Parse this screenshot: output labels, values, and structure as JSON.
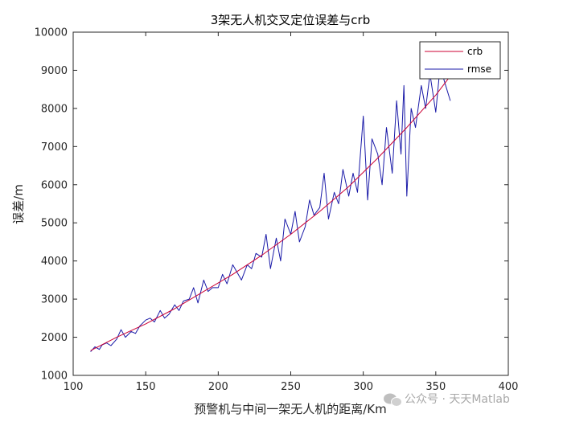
{
  "chart_data": {
    "type": "line",
    "title": "3架无人机交叉定位误差与crb",
    "xlabel": "预警机与中间一架无人机的距离/Km",
    "ylabel": "误差/m",
    "xlim": [
      100,
      400
    ],
    "ylim": [
      1000,
      10000
    ],
    "x_ticks": [
      100,
      150,
      200,
      250,
      300,
      350,
      400
    ],
    "y_ticks": [
      1000,
      2000,
      3000,
      4000,
      5000,
      6000,
      7000,
      8000,
      9000,
      10000
    ],
    "grid": false,
    "legend_position": "top-right",
    "x_range": [
      112,
      360
    ],
    "series": [
      {
        "name": "crb",
        "color": "#cc0033",
        "x": [
          112,
          130,
          150,
          170,
          190,
          210,
          230,
          250,
          270,
          290,
          310,
          330,
          350,
          360
        ],
        "values": [
          1650,
          2000,
          2350,
          2750,
          3200,
          3650,
          4150,
          4700,
          5300,
          5950,
          6700,
          7500,
          8350,
          8850
        ]
      },
      {
        "name": "rmse",
        "color": "#1a1aa8",
        "x": [
          112,
          115,
          118,
          120,
          123,
          126,
          130,
          133,
          136,
          140,
          143,
          146,
          150,
          153,
          156,
          160,
          163,
          166,
          170,
          173,
          176,
          180,
          183,
          186,
          190,
          193,
          196,
          200,
          203,
          206,
          210,
          213,
          216,
          220,
          223,
          226,
          230,
          233,
          236,
          240,
          243,
          246,
          250,
          253,
          256,
          260,
          263,
          266,
          270,
          273,
          276,
          280,
          283,
          286,
          290,
          293,
          296,
          300,
          303,
          306,
          310,
          313,
          316,
          320,
          323,
          326,
          328,
          330,
          333,
          336,
          340,
          343,
          346,
          350,
          353,
          356,
          360
        ],
        "values": [
          1620,
          1750,
          1680,
          1800,
          1850,
          1780,
          1950,
          2200,
          2000,
          2150,
          2100,
          2300,
          2450,
          2500,
          2400,
          2700,
          2500,
          2600,
          2850,
          2700,
          2950,
          3000,
          3300,
          2900,
          3500,
          3200,
          3300,
          3300,
          3650,
          3400,
          3900,
          3700,
          3500,
          3900,
          3800,
          4200,
          4100,
          4700,
          3800,
          4600,
          4000,
          5100,
          4700,
          5300,
          4500,
          4900,
          5600,
          5200,
          5400,
          6300,
          5100,
          5800,
          5500,
          6400,
          5700,
          6300,
          5800,
          7800,
          5600,
          7200,
          6800,
          6000,
          7500,
          6300,
          8200,
          6800,
          8600,
          5700,
          8000,
          7500,
          8600,
          8000,
          8900,
          7900,
          9100,
          8700,
          8200
        ]
      }
    ]
  },
  "watermark": {
    "text": "公众号 · 天天Matlab",
    "icon": "chat-bubble-icon"
  }
}
